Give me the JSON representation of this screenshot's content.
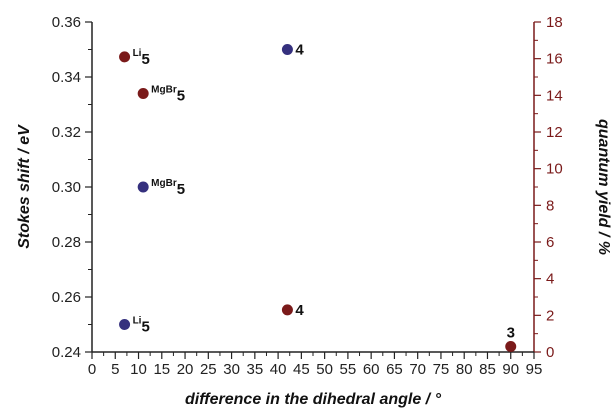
{
  "chart_data": {
    "type": "scatter",
    "title": "",
    "xlabel": "difference in the dihedral angle / °",
    "ylabel": "Stokes shift  / eV",
    "y2label": "quantum yield / %",
    "xlim": [
      0,
      95
    ],
    "ylim": [
      0.24,
      0.36
    ],
    "y2lim": [
      0,
      18
    ],
    "xticks": [
      "0",
      "5",
      "10",
      "15",
      "20",
      "25",
      "30",
      "35",
      "40",
      "45",
      "50",
      "55",
      "60",
      "65",
      "70",
      "75",
      "80",
      "85",
      "90",
      "95"
    ],
    "yticks": [
      "0.24",
      "0.26",
      "0.28",
      "0.30",
      "0.32",
      "0.34",
      "0.36"
    ],
    "y2ticks": [
      "0",
      "2",
      "4",
      "6",
      "8",
      "10",
      "12",
      "14",
      "16",
      "18"
    ],
    "grid": false,
    "colors": {
      "stokes": "#35307e",
      "quantum": "#7a1a1a",
      "left_axis": "#222222",
      "right_axis": "#7a1a1a"
    },
    "series": [
      {
        "key": "stokes",
        "axis": "left",
        "points": [
          {
            "x": 7,
            "y": 0.25,
            "sup": "Li",
            "main": "5"
          },
          {
            "x": 11,
            "y": 0.3,
            "sup": "MgBr",
            "main": "5"
          },
          {
            "x": 42,
            "y": 0.35,
            "sup": "",
            "main": "4"
          }
        ]
      },
      {
        "key": "quantum",
        "axis": "right",
        "points": [
          {
            "x": 7,
            "y": 16.1,
            "sup": "Li",
            "main": "5"
          },
          {
            "x": 11,
            "y": 14.1,
            "sup": "MgBr",
            "main": "5"
          },
          {
            "x": 42,
            "y": 2.3,
            "sup": "",
            "main": "4"
          },
          {
            "x": 90,
            "y": 0.3,
            "sup": "",
            "main": "3"
          }
        ]
      }
    ]
  }
}
